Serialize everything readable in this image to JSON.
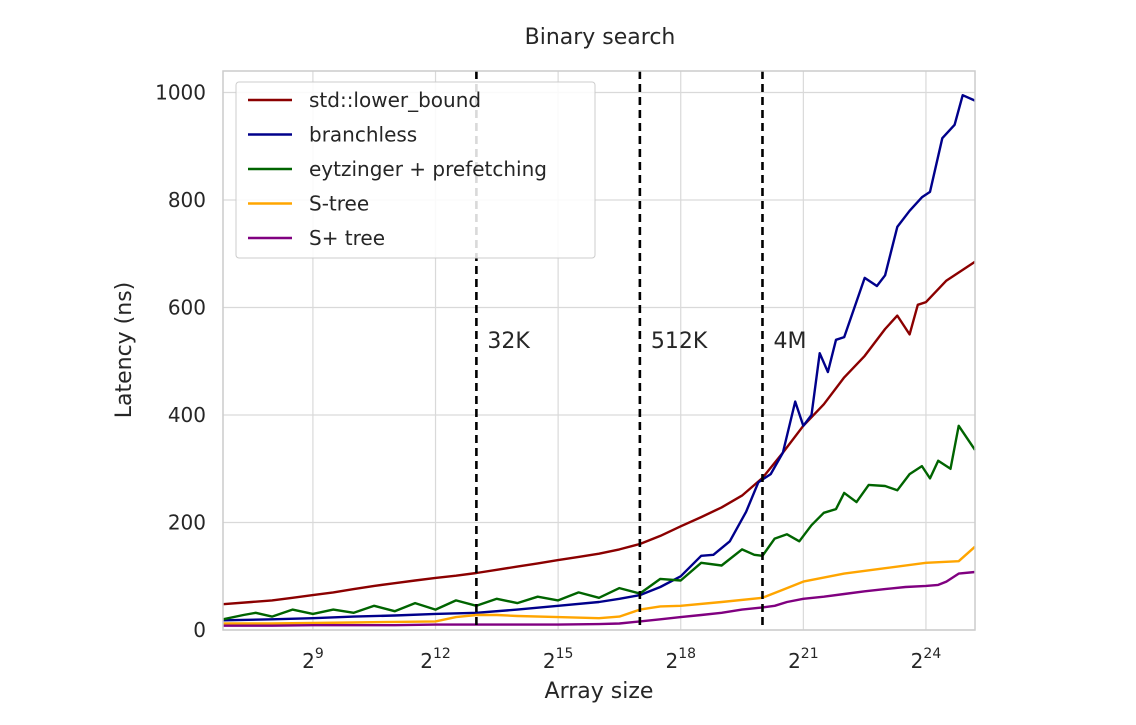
{
  "chart_data": {
    "type": "line",
    "title": "Binary search",
    "xlabel": "Array size",
    "ylabel": "Latency (ns)",
    "x_scale": "log2",
    "xlim_exp": [
      6.8,
      25.2
    ],
    "ylim": [
      0,
      1000
    ],
    "y_view": [
      0,
      1040
    ],
    "x_ticks": [
      {
        "exp": 9,
        "base": "2",
        "power": "9"
      },
      {
        "exp": 12,
        "base": "2",
        "power": "12"
      },
      {
        "exp": 15,
        "base": "2",
        "power": "15"
      },
      {
        "exp": 18,
        "base": "2",
        "power": "18"
      },
      {
        "exp": 21,
        "base": "2",
        "power": "21"
      },
      {
        "exp": 24,
        "base": "2",
        "power": "24"
      }
    ],
    "y_ticks": [
      0,
      200,
      400,
      600,
      800,
      1000
    ],
    "grid": true,
    "legend_position": "top-left",
    "vlines": [
      {
        "exp": 13,
        "label": "32K"
      },
      {
        "exp": 17,
        "label": "512K"
      },
      {
        "exp": 20,
        "label": "4M"
      }
    ],
    "series": [
      {
        "name": "std::lower_bound",
        "color": "#8b0000",
        "points": [
          [
            6.8,
            48
          ],
          [
            7.5,
            52
          ],
          [
            8,
            55
          ],
          [
            8.5,
            60
          ],
          [
            9,
            65
          ],
          [
            9.5,
            70
          ],
          [
            10,
            76
          ],
          [
            10.5,
            82
          ],
          [
            11,
            87
          ],
          [
            11.5,
            92
          ],
          [
            12,
            97
          ],
          [
            12.5,
            101
          ],
          [
            13,
            106
          ],
          [
            13.5,
            112
          ],
          [
            14,
            118
          ],
          [
            14.5,
            124
          ],
          [
            15,
            130
          ],
          [
            15.5,
            136
          ],
          [
            16,
            142
          ],
          [
            16.5,
            150
          ],
          [
            17,
            160
          ],
          [
            17.5,
            175
          ],
          [
            18,
            193
          ],
          [
            18.5,
            210
          ],
          [
            19,
            228
          ],
          [
            19.5,
            250
          ],
          [
            20,
            283
          ],
          [
            20.5,
            330
          ],
          [
            21,
            380
          ],
          [
            21.5,
            420
          ],
          [
            22,
            470
          ],
          [
            22.5,
            510
          ],
          [
            23,
            560
          ],
          [
            23.3,
            585
          ],
          [
            23.6,
            550
          ],
          [
            23.8,
            605
          ],
          [
            24,
            610
          ],
          [
            24.5,
            650
          ],
          [
            25.2,
            685
          ]
        ]
      },
      {
        "name": "branchless",
        "color": "#00008b",
        "points": [
          [
            6.8,
            18
          ],
          [
            8,
            20
          ],
          [
            9,
            22
          ],
          [
            10,
            25
          ],
          [
            11,
            27
          ],
          [
            12,
            30
          ],
          [
            13,
            32
          ],
          [
            14,
            38
          ],
          [
            15,
            45
          ],
          [
            16,
            52
          ],
          [
            16.5,
            58
          ],
          [
            17,
            65
          ],
          [
            17.5,
            80
          ],
          [
            18,
            100
          ],
          [
            18.5,
            138
          ],
          [
            18.8,
            140
          ],
          [
            19.2,
            165
          ],
          [
            19.6,
            220
          ],
          [
            19.9,
            275
          ],
          [
            20.2,
            290
          ],
          [
            20.5,
            330
          ],
          [
            20.8,
            425
          ],
          [
            21,
            380
          ],
          [
            21.2,
            400
          ],
          [
            21.4,
            515
          ],
          [
            21.6,
            480
          ],
          [
            21.8,
            540
          ],
          [
            22,
            545
          ],
          [
            22.5,
            655
          ],
          [
            22.8,
            640
          ],
          [
            23,
            660
          ],
          [
            23.3,
            750
          ],
          [
            23.6,
            780
          ],
          [
            23.9,
            805
          ],
          [
            24.1,
            815
          ],
          [
            24.4,
            915
          ],
          [
            24.7,
            940
          ],
          [
            24.9,
            995
          ],
          [
            25.2,
            985
          ]
        ]
      },
      {
        "name": "eytzinger + prefetching",
        "color": "#006400",
        "points": [
          [
            6.8,
            20
          ],
          [
            7.3,
            28
          ],
          [
            7.6,
            32
          ],
          [
            8,
            25
          ],
          [
            8.5,
            38
          ],
          [
            9,
            30
          ],
          [
            9.5,
            38
          ],
          [
            10,
            32
          ],
          [
            10.5,
            45
          ],
          [
            11,
            35
          ],
          [
            11.5,
            50
          ],
          [
            12,
            38
          ],
          [
            12.5,
            55
          ],
          [
            13,
            45
          ],
          [
            13.5,
            58
          ],
          [
            14,
            50
          ],
          [
            14.5,
            62
          ],
          [
            15,
            55
          ],
          [
            15.5,
            70
          ],
          [
            16,
            60
          ],
          [
            16.5,
            78
          ],
          [
            17,
            68
          ],
          [
            17.5,
            95
          ],
          [
            18,
            92
          ],
          [
            18.5,
            125
          ],
          [
            19,
            120
          ],
          [
            19.5,
            150
          ],
          [
            19.8,
            140
          ],
          [
            20,
            138
          ],
          [
            20.3,
            170
          ],
          [
            20.6,
            178
          ],
          [
            20.9,
            165
          ],
          [
            21.2,
            195
          ],
          [
            21.5,
            218
          ],
          [
            21.8,
            225
          ],
          [
            22,
            255
          ],
          [
            22.3,
            238
          ],
          [
            22.6,
            270
          ],
          [
            23,
            268
          ],
          [
            23.3,
            260
          ],
          [
            23.6,
            290
          ],
          [
            23.9,
            305
          ],
          [
            24.1,
            282
          ],
          [
            24.3,
            315
          ],
          [
            24.6,
            300
          ],
          [
            24.8,
            380
          ],
          [
            25.2,
            335
          ]
        ]
      },
      {
        "name": "S-tree",
        "color": "#ffa500",
        "points": [
          [
            6.8,
            12
          ],
          [
            8,
            12
          ],
          [
            9,
            13
          ],
          [
            10,
            14
          ],
          [
            11,
            15
          ],
          [
            12,
            16
          ],
          [
            12.5,
            24
          ],
          [
            13,
            28
          ],
          [
            13.5,
            28
          ],
          [
            14,
            26
          ],
          [
            15,
            24
          ],
          [
            16,
            22
          ],
          [
            16.5,
            25
          ],
          [
            17,
            38
          ],
          [
            17.5,
            44
          ],
          [
            18,
            45
          ],
          [
            19,
            52
          ],
          [
            20,
            60
          ],
          [
            20.5,
            75
          ],
          [
            21,
            90
          ],
          [
            22,
            105
          ],
          [
            23,
            115
          ],
          [
            24,
            125
          ],
          [
            24.8,
            128
          ],
          [
            25.2,
            155
          ]
        ]
      },
      {
        "name": "S+ tree",
        "color": "#800080",
        "points": [
          [
            6.8,
            8
          ],
          [
            8,
            8
          ],
          [
            9,
            9
          ],
          [
            10,
            9
          ],
          [
            11,
            9
          ],
          [
            12,
            10
          ],
          [
            13,
            10
          ],
          [
            14,
            10
          ],
          [
            15,
            10
          ],
          [
            16,
            11
          ],
          [
            16.5,
            12
          ],
          [
            17,
            16
          ],
          [
            17.5,
            20
          ],
          [
            18,
            24
          ],
          [
            18.5,
            28
          ],
          [
            19,
            32
          ],
          [
            19.5,
            38
          ],
          [
            20,
            42
          ],
          [
            20.3,
            45
          ],
          [
            20.6,
            52
          ],
          [
            21,
            58
          ],
          [
            21.5,
            62
          ],
          [
            22,
            67
          ],
          [
            22.5,
            72
          ],
          [
            23,
            76
          ],
          [
            23.5,
            80
          ],
          [
            24,
            82
          ],
          [
            24.3,
            84
          ],
          [
            24.5,
            90
          ],
          [
            24.8,
            105
          ],
          [
            25.2,
            108
          ]
        ]
      }
    ]
  }
}
